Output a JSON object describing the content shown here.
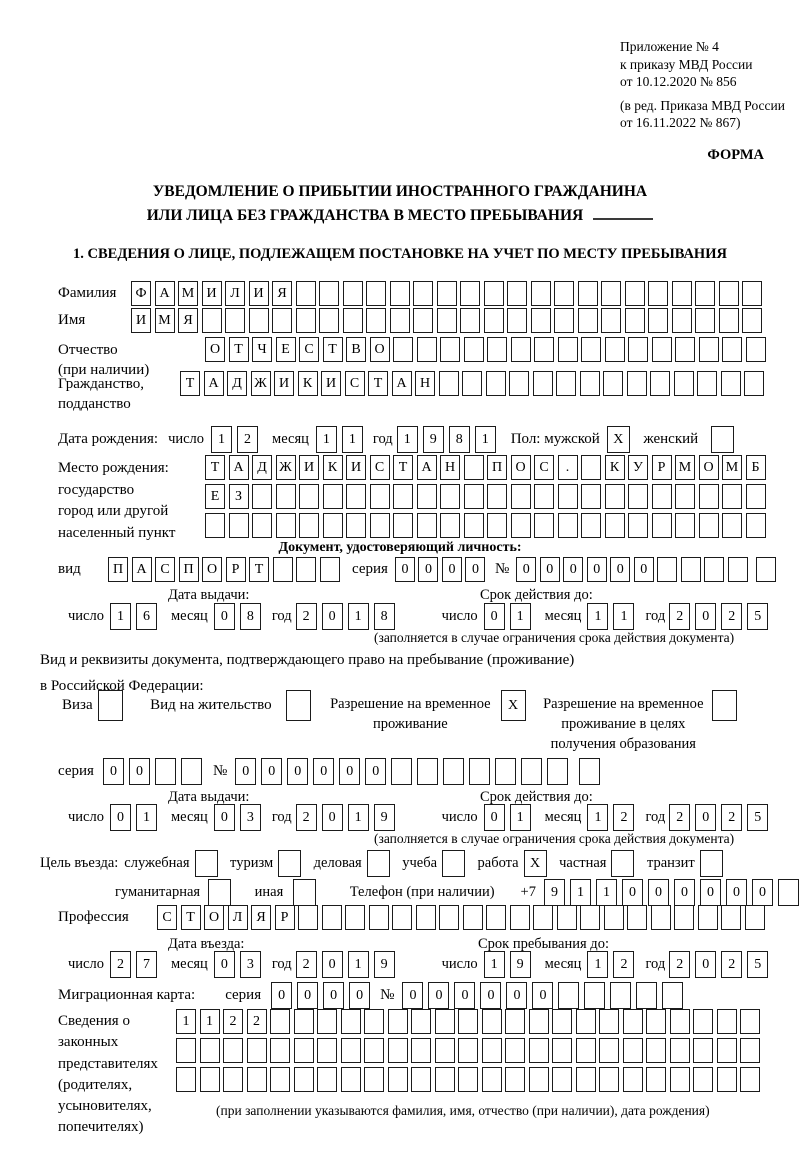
{
  "header": {
    "appendix": [
      "Приложение № 4",
      "к приказу МВД России",
      "от 10.12.2020 № 856"
    ],
    "amendment": [
      "(в ред. Приказа МВД России",
      "от 16.11.2022 № 867)"
    ],
    "form_label": "ФОРМА"
  },
  "title": {
    "line1": "УВЕДОМЛЕНИЕ О ПРИБЫТИИ ИНОСТРАННОГО ГРАЖДАНИНА",
    "line2": "ИЛИ ЛИЦА БЕЗ ГРАЖДАНСТВА В МЕСТО ПРЕБЫВАНИЯ"
  },
  "section1_heading": "1. СВЕДЕНИЯ О ЛИЦЕ, ПОДЛЕЖАЩЕМ ПОСТАНОВКЕ НА УЧЕТ ПО МЕСТУ ПРЕБЫВАНИЯ",
  "labels": {
    "day": "число",
    "month": "месяц",
    "year": "год",
    "seriya": "серия",
    "num": "№",
    "vid": "вид",
    "issue_date": "Дата выдачи:",
    "valid_until": "Срок действия до:",
    "validity_note": "(заполняется в случае ограничения срока действия документа)"
  },
  "surname": {
    "label": "Фамилия",
    "cells": {
      "t": "ФАМИЛИЯ",
      "n": 27
    }
  },
  "name": {
    "label": "Имя",
    "cells": {
      "t": "ИМЯ",
      "n": 27
    }
  },
  "patronymic": {
    "label1": "Отчество",
    "label2": "(при наличии)",
    "cells": {
      "t": "ОТЧЕСТВО",
      "n": 24
    }
  },
  "citizenship": {
    "label1": "Гражданство,",
    "label2": "подданство",
    "cells": {
      "t": "ТАДЖИКИСТАН",
      "n": 25
    }
  },
  "birth": {
    "label": "Дата рождения:",
    "day": {
      "t": "12",
      "n": 2
    },
    "month": {
      "t": "11",
      "n": 2
    },
    "year": {
      "t": "1981",
      "n": 4
    }
  },
  "sex": {
    "label_male": "Пол: мужской",
    "male_box": {
      "t": "X",
      "n": 1
    },
    "label_female": "женский",
    "female_box": {
      "t": "",
      "n": 1
    }
  },
  "birthplace": {
    "labels": [
      "Место рождения:",
      "государство",
      "город или другой",
      "населенный пункт"
    ],
    "row1": {
      "t": "ТАДЖИКИСТАН ПОС. КУРМОМБ",
      "n": 24
    },
    "row2": {
      "t": "ЕЗ",
      "n": 24
    },
    "row3": {
      "t": "",
      "n": 24
    }
  },
  "identity_doc": {
    "heading": "Документ, удостоверяющий личность:",
    "kind": {
      "t": "ПАСПОРТ",
      "n": 10
    },
    "series": {
      "t": "0000",
      "n": 4
    },
    "number": {
      "t": "000000",
      "n": 10
    },
    "number_extra": {
      "t": "",
      "n": 1
    },
    "issue": {
      "day": {
        "t": "16",
        "n": 2
      },
      "month": {
        "t": "08",
        "n": 2
      },
      "year": {
        "t": "2018",
        "n": 4
      }
    },
    "valid": {
      "day": {
        "t": "01",
        "n": 2
      },
      "month": {
        "t": "11",
        "n": 2
      },
      "year": {
        "t": "2025",
        "n": 4
      }
    }
  },
  "residence_doc": {
    "line1": "Вид и реквизиты документа, подтверждающего право на пребывание (проживание)",
    "line2": "в Российской Федерации:",
    "visa_label": "Виза",
    "visa_box": {
      "t": "",
      "n": 1
    },
    "permit_label": "Вид на жительство",
    "permit_box": {
      "t": "",
      "n": 1
    },
    "temp1": "Разрешение на временное",
    "temp2": "проживание",
    "temp_box": {
      "t": "X",
      "n": 1
    },
    "edu1": "Разрешение на временное",
    "edu2": "проживание в целях",
    "edu3": "получения образования",
    "edu_box": {
      "t": "",
      "n": 1
    },
    "series": {
      "t": "00",
      "n": 4
    },
    "number": {
      "t": "000000",
      "n": 13
    },
    "number_extra": {
      "t": "",
      "n": 1
    },
    "issue": {
      "day": {
        "t": "01",
        "n": 2
      },
      "month": {
        "t": "03",
        "n": 2
      },
      "year": {
        "t": "2019",
        "n": 4
      }
    },
    "valid": {
      "day": {
        "t": "01",
        "n": 2
      },
      "month": {
        "t": "12",
        "n": 2
      },
      "year": {
        "t": "2025",
        "n": 4
      }
    }
  },
  "purpose": {
    "label": "Цель въезда:",
    "opts": [
      {
        "label": "служебная",
        "box": {
          "t": "",
          "n": 1
        }
      },
      {
        "label": "туризм",
        "box": {
          "t": "",
          "n": 1
        }
      },
      {
        "label": "деловая",
        "box": {
          "t": "",
          "n": 1
        }
      },
      {
        "label": "учеба",
        "box": {
          "t": "",
          "n": 1
        }
      },
      {
        "label": "работа",
        "box": {
          "t": "X",
          "n": 1
        }
      },
      {
        "label": "частная",
        "box": {
          "t": "",
          "n": 1
        }
      },
      {
        "label": "транзит",
        "box": {
          "t": "",
          "n": 1
        }
      },
      {
        "label": "гуманитарная",
        "box": {
          "t": "",
          "n": 1
        }
      },
      {
        "label": "иная",
        "box": {
          "t": "",
          "n": 1
        }
      }
    ],
    "phone_label": "Телефон (при наличии)",
    "phone_prefix": "+7",
    "phone": {
      "t": "911000000",
      "n": 10
    }
  },
  "profession": {
    "label": "Профессия",
    "cells": {
      "t": "СТОЛЯР",
      "n": 26
    }
  },
  "entry": {
    "date_label": "Дата въезда:",
    "stay_label": "Срок пребывания до:",
    "date": {
      "day": {
        "t": "27",
        "n": 2
      },
      "month": {
        "t": "03",
        "n": 2
      },
      "year": {
        "t": "2019",
        "n": 4
      }
    },
    "stay": {
      "day": {
        "t": "19",
        "n": 2
      },
      "month": {
        "t": "12",
        "n": 2
      },
      "year": {
        "t": "2025",
        "n": 4
      }
    }
  },
  "migration_card": {
    "label": "Миграционная карта:",
    "series": {
      "t": "0000",
      "n": 4
    },
    "number": {
      "t": "000000",
      "n": 11
    }
  },
  "representatives": {
    "labels": [
      "Сведения о",
      "законных",
      "представителях",
      "(родителях,",
      "усыновителях,",
      "попечителях)"
    ],
    "row1": {
      "t": "1122",
      "n": 25
    },
    "row2": {
      "t": "",
      "n": 25
    },
    "row3": {
      "t": "",
      "n": 25
    },
    "note": "(при заполнении указываются фамилия, имя, отчество (при наличии), дата рождения)"
  }
}
